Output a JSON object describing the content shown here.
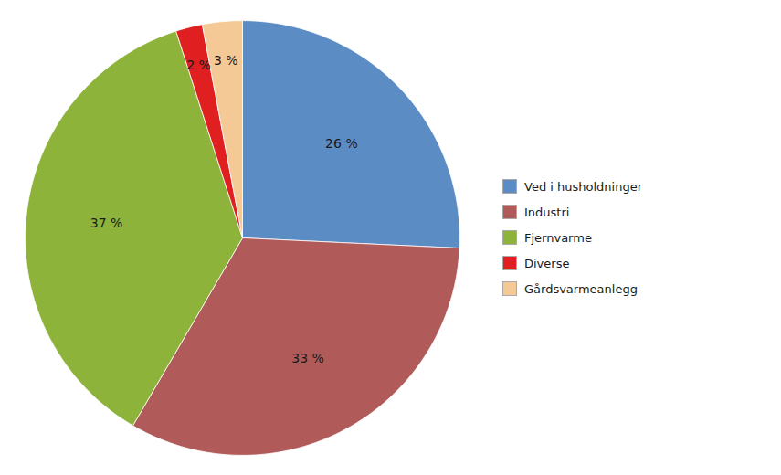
{
  "chart_data": {
    "type": "pie",
    "categories": [
      "Ved i husholdninger",
      "Industri",
      "Fjernvarme",
      "Diverse",
      "Gårdsvarmeanlegg"
    ],
    "values": [
      26,
      33,
      37,
      2,
      3
    ],
    "value_labels": [
      "26 %",
      "33 %",
      "37 %",
      "2 %",
      "3 %"
    ],
    "colors": [
      "#5B8CC4",
      "#B05A5A",
      "#8DB33A",
      "#E02020",
      "#F5C996"
    ],
    "data_labels": true,
    "legend": "right"
  }
}
